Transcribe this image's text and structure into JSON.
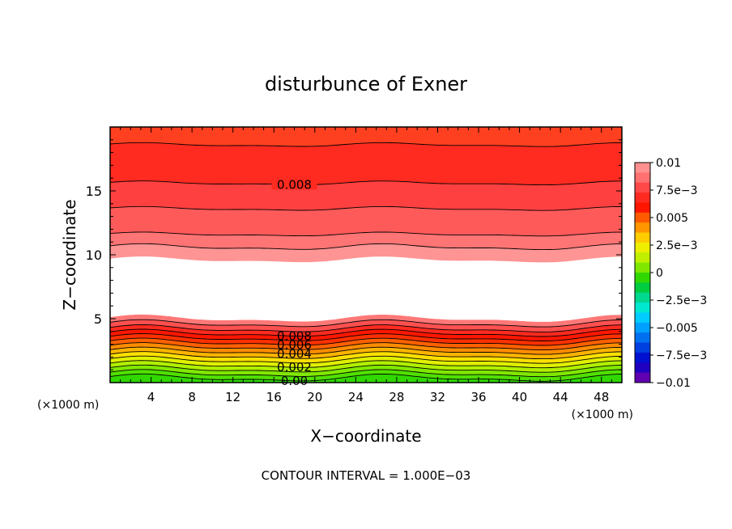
{
  "chart_data": {
    "type": "heatmap",
    "title": "disturbunce of Exner",
    "xlabel": "X−coordinate",
    "ylabel": "Z−coordinate",
    "x_unit": "(×1000 m)",
    "y_unit": "(×1000 m)",
    "footer": "CONTOUR INTERVAL = 1.000E−03",
    "xlim": [
      0,
      50
    ],
    "ylim": [
      0,
      20
    ],
    "x_ticks": [
      "4",
      "8",
      "12",
      "16",
      "20",
      "24",
      "28",
      "32",
      "36",
      "40",
      "44",
      "48"
    ],
    "y_ticks": [
      "5",
      "10",
      "15"
    ],
    "contour_labels": [
      "0.008",
      "0.008",
      "0.006",
      "0.004",
      "0.002",
      "0.00"
    ],
    "colorbar": {
      "range": [
        -0.01,
        0.01
      ],
      "tick_labels": [
        "0.01",
        "7.5e−3",
        "0.005",
        "2.5e−3",
        "0",
        "−2.5e−3",
        "−0.005",
        "−7.5e−3",
        "−0.01"
      ],
      "colors": [
        "#ff9090",
        "#ff7070",
        "#ff4848",
        "#ff2a20",
        "#ff1600",
        "#ff5a00",
        "#ff9600",
        "#ffcc00",
        "#eeee00",
        "#c0f000",
        "#80e800",
        "#30d800",
        "#00cc40",
        "#00d890",
        "#00e8d0",
        "#00ccff",
        "#00a0ff",
        "#0070f0",
        "#0040e0",
        "#0010d0",
        "#2000c0",
        "#6000b0"
      ]
    },
    "bands": [
      {
        "z_bottom": 0.0,
        "value": 0.0,
        "color": "#30d800"
      },
      {
        "z_bottom": 0.35,
        "value": 0.0005,
        "color": "#50e000"
      },
      {
        "z_bottom": 0.7,
        "value": 0.001,
        "color": "#80e800"
      },
      {
        "z_bottom": 1.05,
        "value": 0.0015,
        "color": "#b0f000"
      },
      {
        "z_bottom": 1.4,
        "value": 0.002,
        "color": "#e0f000"
      },
      {
        "z_bottom": 1.75,
        "value": 0.0025,
        "color": "#ffe000"
      },
      {
        "z_bottom": 2.1,
        "value": 0.003,
        "color": "#ffb400"
      },
      {
        "z_bottom": 2.45,
        "value": 0.0035,
        "color": "#ff8c00"
      },
      {
        "z_bottom": 2.8,
        "value": 0.004,
        "color": "#ff6000"
      },
      {
        "z_bottom": 3.15,
        "value": 0.0045,
        "color": "#ff3000"
      },
      {
        "z_bottom": 3.5,
        "value": 0.005,
        "color": "#ff1600"
      },
      {
        "z_bottom": 3.85,
        "value": 0.0055,
        "color": "#ff2a20"
      },
      {
        "z_bottom": 4.2,
        "value": 0.006,
        "color": "#ff5050"
      },
      {
        "z_bottom": 4.6,
        "value": 0.0065,
        "color": "#ff7878"
      },
      {
        "z_bottom": 5.0,
        "value": 0.0,
        "color": "#ffffff"
      },
      {
        "z_bottom": 9.6,
        "value": 0.007,
        "color": "#ff9494"
      },
      {
        "z_bottom": 10.6,
        "value": 0.0075,
        "color": "#ff7474"
      },
      {
        "z_bottom": 11.6,
        "value": 0.008,
        "color": "#ff5a5a"
      },
      {
        "z_bottom": 13.6,
        "value": 0.0085,
        "color": "#ff4040"
      },
      {
        "z_bottom": 15.6,
        "value": 0.009,
        "color": "#ff2a20"
      },
      {
        "z_bottom": 18.6,
        "value": 0.0095,
        "color": "#ff4020"
      }
    ]
  }
}
